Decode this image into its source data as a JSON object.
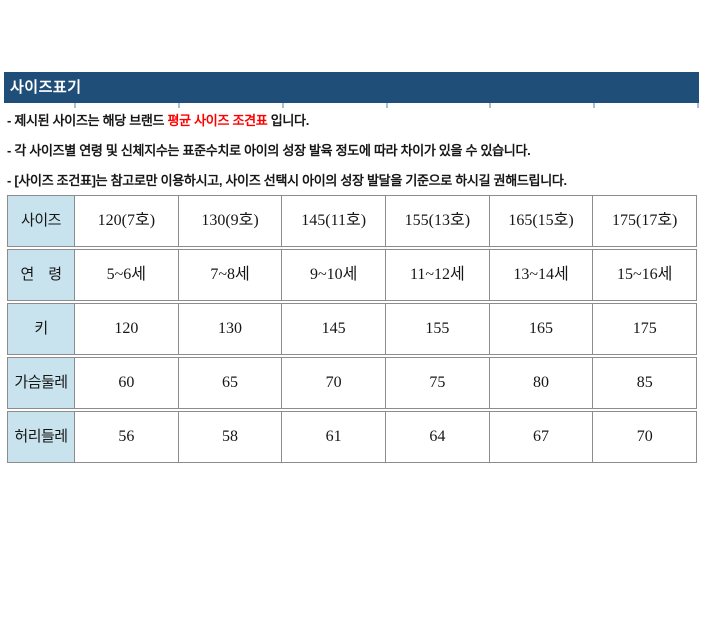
{
  "header": {
    "title": "사이즈표기"
  },
  "notes": [
    {
      "prefix": "- 제시된 사이즈는 해당 브랜드 ",
      "highlight": "평균 사이즈 조견표",
      "suffix": " 입니다."
    },
    {
      "prefix": "- 각 사이즈별 연령 및 신체지수는 표준수치로 아이의 성장 발육 정도에 따라 차이가 있을 수 있습니다.",
      "highlight": "",
      "suffix": ""
    },
    {
      "prefix": "- [사이즈 조건표]는 참고로만 이용하시고, 사이즈 선택시 아이의 성장 발달을 기준으로 하시길 권해드립니다.",
      "highlight": "",
      "suffix": ""
    }
  ],
  "size_table": {
    "rows": [
      {
        "label": "사이즈",
        "values": [
          "120(7호)",
          "130(9호)",
          "145(11호)",
          "155(13호)",
          "165(15호)",
          "175(17호)"
        ]
      },
      {
        "label": "연　령",
        "values": [
          "5~6세",
          "7~8세",
          "9~10세",
          "11~12세",
          "13~14세",
          "15~16세"
        ]
      },
      {
        "label": "키",
        "values": [
          "120",
          "130",
          "145",
          "155",
          "165",
          "175"
        ]
      },
      {
        "label": "가슴둘레",
        "values": [
          "60",
          "65",
          "70",
          "75",
          "80",
          "85"
        ]
      },
      {
        "label": "허리들레",
        "values": [
          "56",
          "58",
          "61",
          "64",
          "67",
          "70"
        ]
      }
    ]
  },
  "colors": {
    "header_bar": "#1f4e79",
    "label_cell_bg": "#c8e3ee",
    "table_border": "#8c8c8c",
    "highlight_red": "#ff0000",
    "body_text": "#161616"
  }
}
